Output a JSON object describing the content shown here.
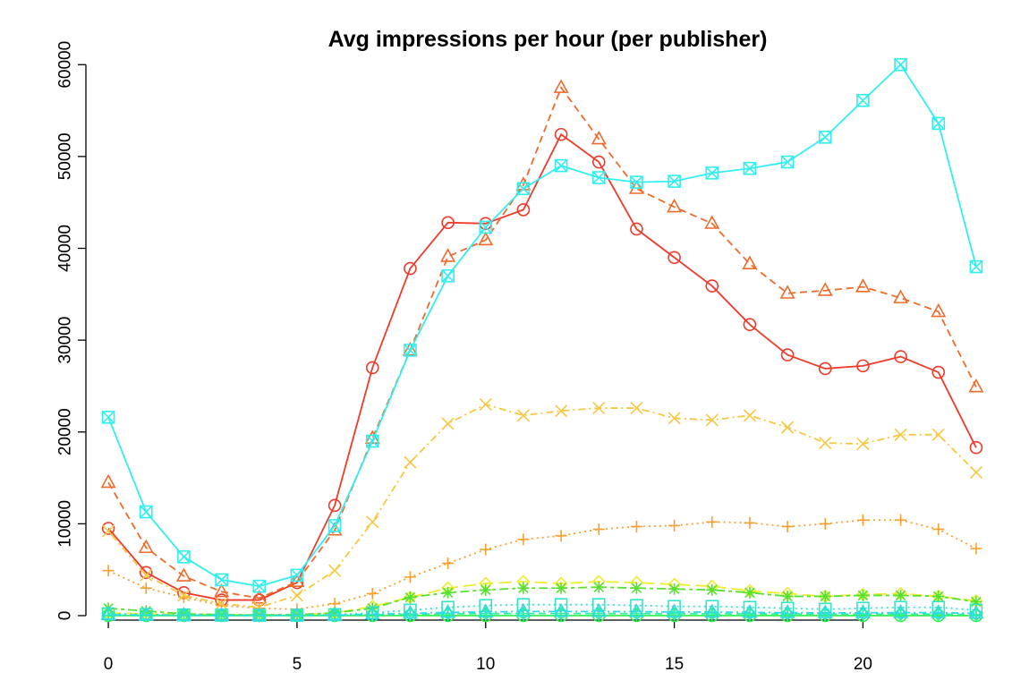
{
  "chart_data": {
    "type": "line",
    "title": "Avg impressions per hour (per publisher)",
    "xlabel": "",
    "ylabel": "",
    "x": [
      0,
      1,
      2,
      3,
      4,
      5,
      6,
      7,
      8,
      9,
      10,
      11,
      12,
      13,
      14,
      15,
      16,
      17,
      18,
      19,
      20,
      21,
      22,
      23
    ],
    "xlim": [
      -0.5,
      23.5
    ],
    "ylim": [
      0,
      61000
    ],
    "xticks": [
      0,
      5,
      10,
      15,
      20
    ],
    "yticks": [
      0,
      10000,
      20000,
      30000,
      40000,
      50000,
      60000
    ],
    "grid": false,
    "legend": "none",
    "series": [
      {
        "color": "#f03a2a",
        "marker": "circle",
        "dash": "solid",
        "values": [
          9500,
          4700,
          2500,
          1700,
          1700,
          3600,
          12000,
          27000,
          37800,
          42800,
          42700,
          44200,
          52400,
          49400,
          42100,
          39000,
          35900,
          31700,
          28400,
          26900,
          27200,
          28200,
          26500,
          18300
        ]
      },
      {
        "color": "#f06a2a",
        "marker": "triangle",
        "dash": "dashed",
        "values": [
          14500,
          7400,
          4300,
          2600,
          1900,
          3700,
          9300,
          19300,
          28900,
          39100,
          40900,
          46900,
          57500,
          51900,
          46500,
          44500,
          42700,
          38300,
          35100,
          35400,
          35800,
          34600,
          33100,
          24900
        ]
      },
      {
        "color": "#f7a030",
        "marker": "plus",
        "dash": "dotted",
        "values": [
          4900,
          3000,
          2000,
          1100,
          800,
          700,
          1300,
          2400,
          4200,
          5700,
          7200,
          8300,
          8700,
          9400,
          9700,
          9800,
          10200,
          10100,
          9700,
          10000,
          10400,
          10400,
          9400,
          7300
        ]
      },
      {
        "color": "#f5c842",
        "marker": "cross",
        "dash": "dotdash",
        "values": [
          9200,
          4400,
          2200,
          1300,
          900,
          2200,
          4900,
          10200,
          16700,
          20900,
          23000,
          21800,
          22300,
          22600,
          22600,
          21500,
          21300,
          21800,
          20500,
          18800,
          18700,
          19700,
          19700,
          15600
        ]
      },
      {
        "color": "#ecec30",
        "marker": "diamond",
        "dash": "longdash",
        "values": [
          300,
          200,
          150,
          100,
          80,
          80,
          300,
          1000,
          2000,
          3000,
          3500,
          3700,
          3500,
          3700,
          3600,
          3400,
          3200,
          2700,
          2400,
          2100,
          2300,
          2400,
          2100,
          1600
        ]
      },
      {
        "color": "#56e030",
        "marker": "asterisk",
        "dash": "twodash",
        "values": [
          800,
          500,
          200,
          100,
          80,
          100,
          300,
          800,
          2000,
          2500,
          2800,
          3000,
          3000,
          3100,
          3000,
          2900,
          2800,
          2500,
          2100,
          2100,
          2200,
          2200,
          2100,
          1500
        ]
      },
      {
        "color": "#30f050",
        "marker": "circleplus",
        "dash": "solid",
        "values": [
          0,
          0,
          0,
          0,
          0,
          0,
          0,
          0,
          0,
          0,
          0,
          0,
          0,
          0,
          0,
          0,
          0,
          0,
          0,
          0,
          0,
          0,
          0,
          0
        ]
      },
      {
        "color": "#30f0a0",
        "marker": "diamondplus",
        "dash": "dashed",
        "values": [
          50,
          40,
          30,
          20,
          20,
          20,
          40,
          100,
          150,
          200,
          220,
          230,
          230,
          230,
          220,
          210,
          200,
          190,
          180,
          170,
          170,
          170,
          160,
          120
        ]
      },
      {
        "color": "#30e6c8",
        "marker": "square",
        "dash": "dotted",
        "values": [
          200,
          120,
          80,
          50,
          40,
          40,
          100,
          300,
          600,
          900,
          1100,
          1200,
          1200,
          1200,
          1100,
          1000,
          1000,
          900,
          800,
          700,
          800,
          900,
          900,
          600
        ]
      },
      {
        "color": "#30d8e8",
        "marker": "triangle",
        "dash": "dotdash",
        "values": [
          100,
          70,
          50,
          30,
          30,
          30,
          60,
          150,
          250,
          350,
          400,
          450,
          450,
          450,
          430,
          400,
          380,
          350,
          320,
          300,
          310,
          330,
          330,
          250
        ]
      },
      {
        "color": "#33eeee",
        "marker": "squarecross",
        "dash": "solid",
        "values": [
          21600,
          11300,
          6400,
          3900,
          3200,
          4400,
          9800,
          19000,
          28900,
          37000,
          42300,
          46500,
          49000,
          47700,
          47200,
          47300,
          48200,
          48700,
          49400,
          52100,
          56100,
          60000,
          53600,
          38000
        ]
      }
    ]
  }
}
